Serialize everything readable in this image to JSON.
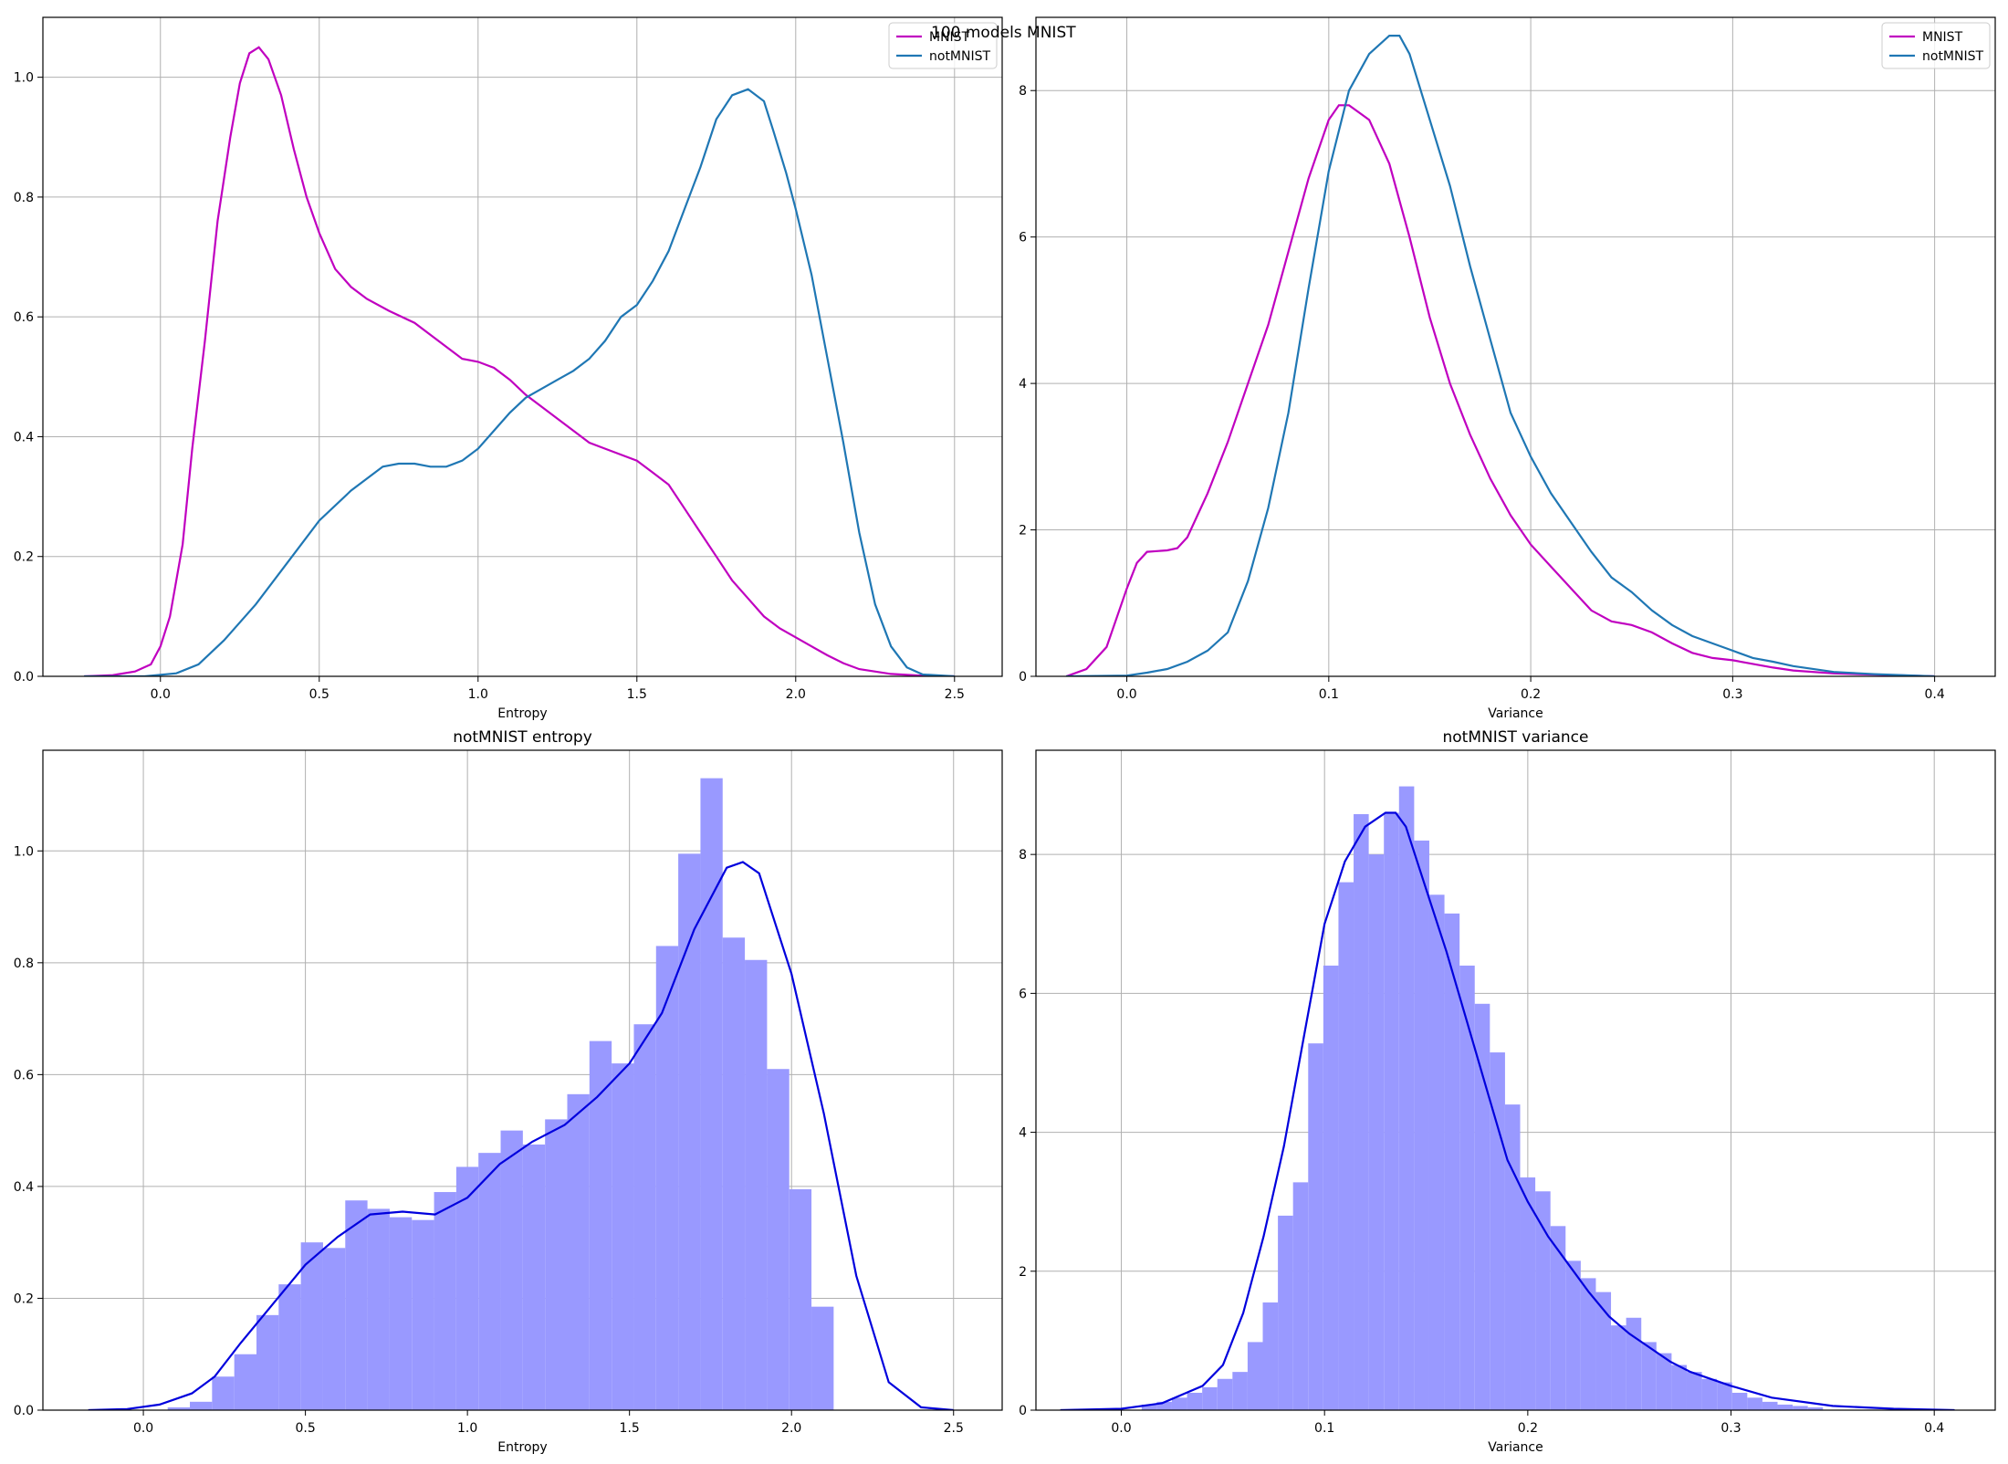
{
  "figure": {
    "suptitle": "100 models MNIST"
  },
  "chart_data": [
    {
      "type": "line",
      "title": "",
      "xlabel": "Entropy",
      "ylabel": "",
      "xlim": [
        -0.37,
        2.65
      ],
      "ylim": [
        0,
        1.1
      ],
      "xticks": [
        0.0,
        0.5,
        1.0,
        1.5,
        2.0,
        2.5
      ],
      "yticks": [
        0.0,
        0.2,
        0.4,
        0.6,
        0.8,
        1.0
      ],
      "grid": true,
      "legend": "top-right",
      "series": [
        {
          "name": "MNIST",
          "color": "#c000c0",
          "points": [
            [
              -0.24,
              0
            ],
            [
              -0.15,
              0.002
            ],
            [
              -0.08,
              0.008
            ],
            [
              -0.03,
              0.02
            ],
            [
              0,
              0.05
            ],
            [
              0.03,
              0.1
            ],
            [
              0.07,
              0.22
            ],
            [
              0.1,
              0.38
            ],
            [
              0.14,
              0.56
            ],
            [
              0.18,
              0.76
            ],
            [
              0.22,
              0.9
            ],
            [
              0.25,
              0.99
            ],
            [
              0.28,
              1.04
            ],
            [
              0.31,
              1.05
            ],
            [
              0.34,
              1.03
            ],
            [
              0.38,
              0.97
            ],
            [
              0.42,
              0.88
            ],
            [
              0.46,
              0.8
            ],
            [
              0.5,
              0.74
            ],
            [
              0.55,
              0.68
            ],
            [
              0.6,
              0.65
            ],
            [
              0.65,
              0.63
            ],
            [
              0.72,
              0.61
            ],
            [
              0.8,
              0.59
            ],
            [
              0.85,
              0.57
            ],
            [
              0.9,
              0.55
            ],
            [
              0.95,
              0.53
            ],
            [
              1.0,
              0.525
            ],
            [
              1.05,
              0.515
            ],
            [
              1.1,
              0.495
            ],
            [
              1.15,
              0.47
            ],
            [
              1.2,
              0.45
            ],
            [
              1.25,
              0.43
            ],
            [
              1.3,
              0.41
            ],
            [
              1.35,
              0.39
            ],
            [
              1.4,
              0.38
            ],
            [
              1.5,
              0.36
            ],
            [
              1.55,
              0.34
            ],
            [
              1.6,
              0.32
            ],
            [
              1.65,
              0.28
            ],
            [
              1.7,
              0.24
            ],
            [
              1.75,
              0.2
            ],
            [
              1.8,
              0.16
            ],
            [
              1.85,
              0.13
            ],
            [
              1.9,
              0.1
            ],
            [
              1.95,
              0.08
            ],
            [
              2.0,
              0.065
            ],
            [
              2.05,
              0.05
            ],
            [
              2.1,
              0.035
            ],
            [
              2.15,
              0.022
            ],
            [
              2.2,
              0.012
            ],
            [
              2.3,
              0.004
            ],
            [
              2.4,
              0.001
            ],
            [
              2.5,
              0
            ]
          ]
        },
        {
          "name": "notMNIST",
          "color": "#1f77b4",
          "points": [
            [
              -0.24,
              0
            ],
            [
              -0.05,
              0
            ],
            [
              0.05,
              0.005
            ],
            [
              0.12,
              0.02
            ],
            [
              0.2,
              0.06
            ],
            [
              0.3,
              0.12
            ],
            [
              0.4,
              0.19
            ],
            [
              0.5,
              0.26
            ],
            [
              0.6,
              0.31
            ],
            [
              0.7,
              0.35
            ],
            [
              0.75,
              0.355
            ],
            [
              0.8,
              0.355
            ],
            [
              0.85,
              0.35
            ],
            [
              0.9,
              0.35
            ],
            [
              0.95,
              0.36
            ],
            [
              1.0,
              0.38
            ],
            [
              1.05,
              0.41
            ],
            [
              1.1,
              0.44
            ],
            [
              1.15,
              0.465
            ],
            [
              1.2,
              0.48
            ],
            [
              1.25,
              0.495
            ],
            [
              1.3,
              0.51
            ],
            [
              1.35,
              0.53
            ],
            [
              1.4,
              0.56
            ],
            [
              1.45,
              0.6
            ],
            [
              1.5,
              0.62
            ],
            [
              1.55,
              0.66
            ],
            [
              1.6,
              0.71
            ],
            [
              1.65,
              0.78
            ],
            [
              1.7,
              0.85
            ],
            [
              1.75,
              0.93
            ],
            [
              1.8,
              0.97
            ],
            [
              1.85,
              0.98
            ],
            [
              1.9,
              0.96
            ],
            [
              1.93,
              0.91
            ],
            [
              1.97,
              0.84
            ],
            [
              2.0,
              0.78
            ],
            [
              2.05,
              0.67
            ],
            [
              2.1,
              0.53
            ],
            [
              2.15,
              0.39
            ],
            [
              2.2,
              0.24
            ],
            [
              2.25,
              0.12
            ],
            [
              2.3,
              0.05
            ],
            [
              2.35,
              0.015
            ],
            [
              2.4,
              0.003
            ],
            [
              2.5,
              0
            ]
          ]
        }
      ]
    },
    {
      "type": "line",
      "title": "",
      "xlabel": "Variance",
      "ylabel": "",
      "xlim": [
        -0.045,
        0.43
      ],
      "ylim": [
        0,
        9.0
      ],
      "xticks": [
        0.0,
        0.1,
        0.2,
        0.3,
        0.4
      ],
      "yticks": [
        0,
        2,
        4,
        6,
        8
      ],
      "grid": true,
      "legend": "top-right",
      "series": [
        {
          "name": "MNIST",
          "color": "#c000c0",
          "points": [
            [
              -0.03,
              0
            ],
            [
              -0.02,
              0.1
            ],
            [
              -0.01,
              0.4
            ],
            [
              0,
              1.2
            ],
            [
              0.005,
              1.55
            ],
            [
              0.01,
              1.7
            ],
            [
              0.02,
              1.72
            ],
            [
              0.025,
              1.75
            ],
            [
              0.03,
              1.9
            ],
            [
              0.035,
              2.2
            ],
            [
              0.04,
              2.5
            ],
            [
              0.05,
              3.2
            ],
            [
              0.06,
              4.0
            ],
            [
              0.07,
              4.8
            ],
            [
              0.08,
              5.8
            ],
            [
              0.09,
              6.8
            ],
            [
              0.1,
              7.6
            ],
            [
              0.105,
              7.8
            ],
            [
              0.11,
              7.8
            ],
            [
              0.12,
              7.6
            ],
            [
              0.13,
              7.0
            ],
            [
              0.14,
              6.0
            ],
            [
              0.15,
              4.9
            ],
            [
              0.16,
              4.0
            ],
            [
              0.17,
              3.3
            ],
            [
              0.18,
              2.7
            ],
            [
              0.19,
              2.2
            ],
            [
              0.2,
              1.8
            ],
            [
              0.21,
              1.5
            ],
            [
              0.22,
              1.2
            ],
            [
              0.23,
              0.9
            ],
            [
              0.24,
              0.75
            ],
            [
              0.25,
              0.7
            ],
            [
              0.26,
              0.6
            ],
            [
              0.27,
              0.45
            ],
            [
              0.28,
              0.32
            ],
            [
              0.29,
              0.25
            ],
            [
              0.3,
              0.22
            ],
            [
              0.31,
              0.17
            ],
            [
              0.32,
              0.12
            ],
            [
              0.33,
              0.08
            ],
            [
              0.35,
              0.04
            ],
            [
              0.4,
              0
            ]
          ]
        },
        {
          "name": "notMNIST",
          "color": "#1f77b4",
          "points": [
            [
              -0.03,
              0
            ],
            [
              0,
              0.01
            ],
            [
              0.01,
              0.05
            ],
            [
              0.02,
              0.1
            ],
            [
              0.03,
              0.2
            ],
            [
              0.04,
              0.35
            ],
            [
              0.05,
              0.6
            ],
            [
              0.06,
              1.3
            ],
            [
              0.07,
              2.3
            ],
            [
              0.08,
              3.6
            ],
            [
              0.09,
              5.3
            ],
            [
              0.1,
              6.9
            ],
            [
              0.11,
              8.0
            ],
            [
              0.12,
              8.5
            ],
            [
              0.13,
              8.75
            ],
            [
              0.135,
              8.75
            ],
            [
              0.14,
              8.5
            ],
            [
              0.15,
              7.6
            ],
            [
              0.16,
              6.7
            ],
            [
              0.17,
              5.6
            ],
            [
              0.18,
              4.6
            ],
            [
              0.19,
              3.6
            ],
            [
              0.2,
              3.0
            ],
            [
              0.21,
              2.5
            ],
            [
              0.22,
              2.1
            ],
            [
              0.23,
              1.7
            ],
            [
              0.24,
              1.35
            ],
            [
              0.25,
              1.15
            ],
            [
              0.26,
              0.9
            ],
            [
              0.27,
              0.7
            ],
            [
              0.28,
              0.55
            ],
            [
              0.29,
              0.45
            ],
            [
              0.3,
              0.35
            ],
            [
              0.31,
              0.25
            ],
            [
              0.32,
              0.2
            ],
            [
              0.33,
              0.14
            ],
            [
              0.35,
              0.06
            ],
            [
              0.37,
              0.03
            ],
            [
              0.4,
              0
            ]
          ]
        }
      ]
    },
    {
      "type": "bar",
      "title": "notMNIST entropy",
      "xlabel": "Entropy",
      "ylabel": "",
      "xlim": [
        -0.31,
        2.65
      ],
      "ylim": [
        0,
        1.18
      ],
      "xticks": [
        0.0,
        0.5,
        1.0,
        1.5,
        2.0,
        2.5
      ],
      "yticks": [
        0.0,
        0.2,
        0.4,
        0.6,
        0.8,
        1.0
      ],
      "grid": true,
      "bar_color": "#9999ff",
      "kde_color": "#0000dd",
      "bins": {
        "start": 0.075,
        "width": 0.0685,
        "values": [
          0.005,
          0.015,
          0.06,
          0.1,
          0.17,
          0.225,
          0.3,
          0.29,
          0.375,
          0.36,
          0.345,
          0.34,
          0.39,
          0.435,
          0.46,
          0.5,
          0.475,
          0.52,
          0.565,
          0.66,
          0.62,
          0.69,
          0.83,
          0.995,
          1.13,
          0.845,
          0.805,
          0.61,
          0.395,
          0.185
        ]
      },
      "kde": [
        [
          -0.17,
          0
        ],
        [
          -0.05,
          0.002
        ],
        [
          0.05,
          0.01
        ],
        [
          0.15,
          0.03
        ],
        [
          0.22,
          0.06
        ],
        [
          0.3,
          0.12
        ],
        [
          0.4,
          0.19
        ],
        [
          0.5,
          0.26
        ],
        [
          0.6,
          0.31
        ],
        [
          0.7,
          0.35
        ],
        [
          0.8,
          0.355
        ],
        [
          0.9,
          0.35
        ],
        [
          1.0,
          0.38
        ],
        [
          1.1,
          0.44
        ],
        [
          1.2,
          0.48
        ],
        [
          1.3,
          0.51
        ],
        [
          1.4,
          0.56
        ],
        [
          1.5,
          0.62
        ],
        [
          1.6,
          0.71
        ],
        [
          1.7,
          0.86
        ],
        [
          1.8,
          0.97
        ],
        [
          1.85,
          0.98
        ],
        [
          1.9,
          0.96
        ],
        [
          2.0,
          0.78
        ],
        [
          2.1,
          0.53
        ],
        [
          2.2,
          0.24
        ],
        [
          2.3,
          0.05
        ],
        [
          2.4,
          0.005
        ],
        [
          2.5,
          0
        ]
      ]
    },
    {
      "type": "bar",
      "title": "notMNIST variance",
      "xlabel": "Variance",
      "ylabel": "",
      "xlim": [
        -0.042,
        0.43
      ],
      "ylim": [
        0,
        9.5
      ],
      "xticks": [
        0.0,
        0.1,
        0.2,
        0.3,
        0.4
      ],
      "yticks": [
        0,
        2,
        4,
        6,
        8
      ],
      "grid": true,
      "bar_color": "#9999ff",
      "kde_color": "#0000dd",
      "bins": {
        "start": 0.01,
        "width": 0.00745,
        "values": [
          0.08,
          0.12,
          0.18,
          0.25,
          0.33,
          0.45,
          0.55,
          0.98,
          1.55,
          2.8,
          3.28,
          5.28,
          6.4,
          7.6,
          8.58,
          8.0,
          8.6,
          8.98,
          8.2,
          7.42,
          7.15,
          6.4,
          5.85,
          5.15,
          4.4,
          3.35,
          3.15,
          2.65,
          2.15,
          1.9,
          1.7,
          1.22,
          1.33,
          0.98,
          0.82,
          0.65,
          0.55,
          0.45,
          0.4,
          0.25,
          0.18,
          0.12,
          0.08,
          0.06,
          0.04
        ]
      },
      "kde": [
        [
          -0.03,
          0
        ],
        [
          0,
          0.02
        ],
        [
          0.02,
          0.1
        ],
        [
          0.04,
          0.35
        ],
        [
          0.05,
          0.65
        ],
        [
          0.06,
          1.4
        ],
        [
          0.07,
          2.5
        ],
        [
          0.08,
          3.8
        ],
        [
          0.09,
          5.4
        ],
        [
          0.1,
          7.0
        ],
        [
          0.11,
          7.9
        ],
        [
          0.12,
          8.4
        ],
        [
          0.13,
          8.6
        ],
        [
          0.135,
          8.6
        ],
        [
          0.14,
          8.4
        ],
        [
          0.15,
          7.5
        ],
        [
          0.16,
          6.6
        ],
        [
          0.17,
          5.6
        ],
        [
          0.18,
          4.6
        ],
        [
          0.19,
          3.6
        ],
        [
          0.2,
          3.0
        ],
        [
          0.21,
          2.5
        ],
        [
          0.22,
          2.1
        ],
        [
          0.23,
          1.7
        ],
        [
          0.24,
          1.35
        ],
        [
          0.25,
          1.1
        ],
        [
          0.26,
          0.9
        ],
        [
          0.27,
          0.7
        ],
        [
          0.28,
          0.55
        ],
        [
          0.29,
          0.45
        ],
        [
          0.3,
          0.35
        ],
        [
          0.32,
          0.18
        ],
        [
          0.35,
          0.06
        ],
        [
          0.38,
          0.02
        ],
        [
          0.41,
          0
        ]
      ]
    }
  ]
}
